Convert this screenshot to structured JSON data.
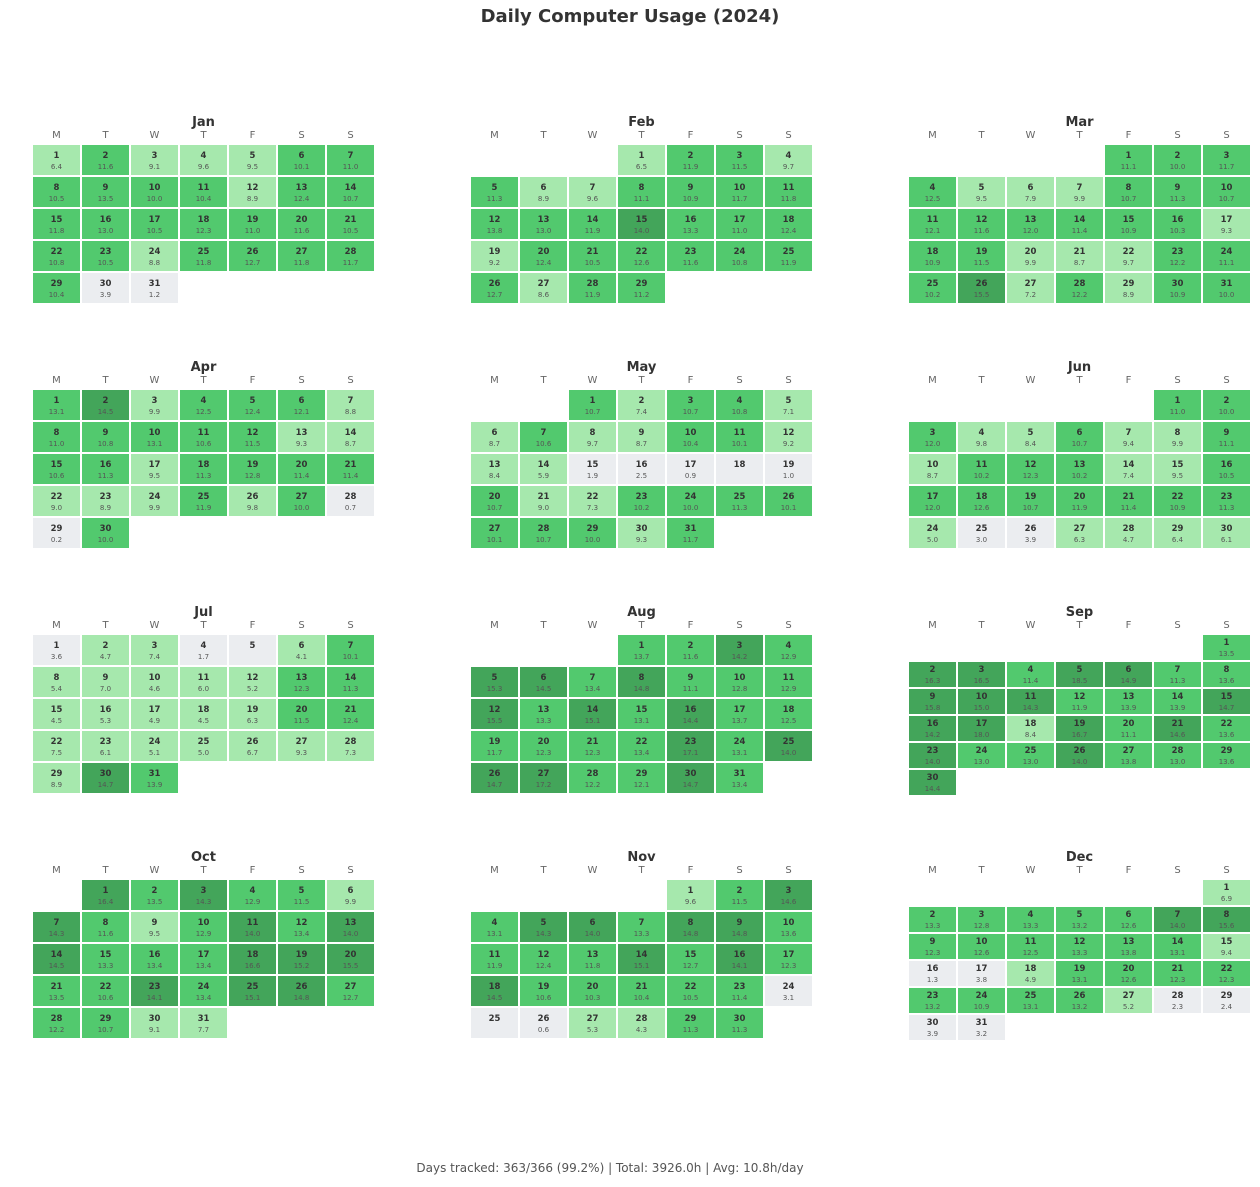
{
  "title": "Daily Computer Usage (2024)",
  "footer": "Days tracked: 363/366 (99.2%) | Total: 3926.0h | Avg: 10.8h/day",
  "weekday_labels": [
    "M",
    "T",
    "W",
    "T",
    "F",
    "S",
    "S"
  ],
  "colors": {
    "empty": "#ebedf0",
    "low": "#a6e8ad",
    "mid": "#52c96e",
    "high": "#43a55a"
  },
  "chart_data": {
    "type": "heatmap",
    "year": 2024,
    "unit": "hours",
    "months": [
      {
        "name": "Jan",
        "start_weekday": 0,
        "hours": [
          6.4,
          11.6,
          9.1,
          9.6,
          9.5,
          10.1,
          11.0,
          10.5,
          13.5,
          10.0,
          10.4,
          8.9,
          12.4,
          10.7,
          11.8,
          13.0,
          10.5,
          12.3,
          11.0,
          11.6,
          10.5,
          10.8,
          10.5,
          8.8,
          11.8,
          12.7,
          11.8,
          11.7,
          10.4,
          3.9,
          1.2
        ]
      },
      {
        "name": "Feb",
        "start_weekday": 3,
        "hours": [
          6.5,
          11.9,
          11.5,
          9.7,
          11.3,
          8.9,
          9.6,
          11.1,
          10.9,
          11.7,
          11.8,
          13.8,
          13.0,
          11.9,
          14.0,
          13.3,
          11.0,
          12.4,
          9.2,
          12.4,
          10.5,
          12.6,
          11.6,
          10.8,
          11.9,
          12.7,
          8.6,
          11.9,
          11.2
        ]
      },
      {
        "name": "Mar",
        "start_weekday": 4,
        "hours": [
          11.1,
          10.0,
          11.7,
          12.5,
          9.5,
          7.9,
          9.9,
          10.7,
          11.3,
          10.7,
          12.1,
          11.6,
          12.0,
          11.4,
          10.9,
          10.3,
          9.3,
          10.9,
          11.5,
          9.9,
          8.7,
          9.7,
          12.2,
          11.1,
          10.2,
          15.5,
          7.2,
          12.2,
          8.9,
          10.9,
          10.0
        ]
      },
      {
        "name": "Apr",
        "start_weekday": 0,
        "hours": [
          13.1,
          14.5,
          9.9,
          12.5,
          12.4,
          12.1,
          8.8,
          11.0,
          10.8,
          13.1,
          10.6,
          11.5,
          9.3,
          8.7,
          10.6,
          11.3,
          9.5,
          11.3,
          12.8,
          11.4,
          11.4,
          9.0,
          8.9,
          9.9,
          11.9,
          9.8,
          10.0,
          0.7,
          0.2,
          10.0
        ]
      },
      {
        "name": "May",
        "start_weekday": 2,
        "hours": [
          10.7,
          7.4,
          10.7,
          10.8,
          7.1,
          8.7,
          10.6,
          9.7,
          8.7,
          10.4,
          10.1,
          9.2,
          8.4,
          5.9,
          1.9,
          2.5,
          0.9,
          null,
          1.0,
          10.7,
          9.0,
          7.3,
          10.2,
          10.0,
          11.3,
          10.1,
          10.1,
          10.7,
          10.0,
          9.3,
          11.7
        ]
      },
      {
        "name": "Jun",
        "start_weekday": 5,
        "hours": [
          11.0,
          10.0,
          12.0,
          9.8,
          8.4,
          10.7,
          9.4,
          9.9,
          11.1,
          8.7,
          10.2,
          12.3,
          10.2,
          7.4,
          9.5,
          10.5,
          12.0,
          12.6,
          10.7,
          11.9,
          11.4,
          10.9,
          11.3,
          5.0,
          3.0,
          3.9,
          6.3,
          4.7,
          6.4,
          6.1
        ]
      },
      {
        "name": "Jul",
        "start_weekday": 0,
        "hours": [
          3.6,
          4.7,
          7.4,
          1.7,
          null,
          4.1,
          10.1,
          5.4,
          7.0,
          4.6,
          6.0,
          5.2,
          12.3,
          11.3,
          4.5,
          5.3,
          4.9,
          4.5,
          6.3,
          11.5,
          12.4,
          7.5,
          6.1,
          5.1,
          5.0,
          6.7,
          9.3,
          7.3,
          8.9,
          14.7,
          13.9
        ]
      },
      {
        "name": "Aug",
        "start_weekday": 3,
        "hours": [
          13.7,
          11.6,
          14.2,
          12.9,
          15.3,
          14.5,
          13.4,
          14.8,
          11.1,
          12.8,
          12.9,
          15.5,
          13.3,
          15.1,
          13.1,
          14.4,
          13.7,
          12.5,
          11.7,
          12.3,
          12.3,
          13.4,
          17.1,
          13.1,
          14.0,
          14.7,
          17.2,
          12.2,
          12.1,
          14.7,
          13.4
        ]
      },
      {
        "name": "Sep",
        "start_weekday": 6,
        "hours": [
          13.5,
          16.3,
          16.5,
          11.4,
          18.5,
          14.9,
          11.3,
          13.6,
          15.8,
          15.0,
          14.3,
          11.9,
          13.9,
          13.9,
          14.7,
          14.2,
          18.0,
          8.4,
          16.7,
          11.1,
          14.6,
          13.6,
          14.0,
          13.0,
          13.0,
          14.0,
          13.8,
          13.0,
          13.6,
          14.4
        ]
      },
      {
        "name": "Oct",
        "start_weekday": 1,
        "hours": [
          16.4,
          13.5,
          14.3,
          12.9,
          11.5,
          9.9,
          14.3,
          11.6,
          9.5,
          12.9,
          14.0,
          13.4,
          14.0,
          14.5,
          13.3,
          13.4,
          13.4,
          16.6,
          15.2,
          15.5,
          13.5,
          10.6,
          14.1,
          13.4,
          15.1,
          14.8,
          12.7,
          12.2,
          10.7,
          9.1,
          7.7
        ]
      },
      {
        "name": "Nov",
        "start_weekday": 4,
        "hours": [
          9.6,
          11.5,
          14.6,
          13.1,
          14.3,
          14.0,
          13.3,
          14.8,
          14.8,
          13.6,
          11.9,
          12.4,
          11.8,
          15.1,
          12.7,
          14.1,
          12.3,
          14.5,
          10.6,
          10.3,
          10.4,
          10.5,
          11.4,
          3.1,
          null,
          0.6,
          5.3,
          4.3,
          11.3,
          11.3
        ]
      },
      {
        "name": "Dec",
        "start_weekday": 6,
        "hours": [
          6.9,
          13.3,
          12.8,
          13.3,
          13.2,
          12.6,
          14.0,
          15.6,
          12.3,
          12.6,
          12.5,
          13.3,
          13.8,
          13.1,
          9.4,
          1.3,
          3.8,
          4.9,
          13.1,
          12.6,
          12.3,
          12.3,
          13.2,
          10.9,
          13.1,
          13.2,
          5.2,
          2.3,
          2.4,
          3.9,
          3.2
        ]
      }
    ]
  }
}
